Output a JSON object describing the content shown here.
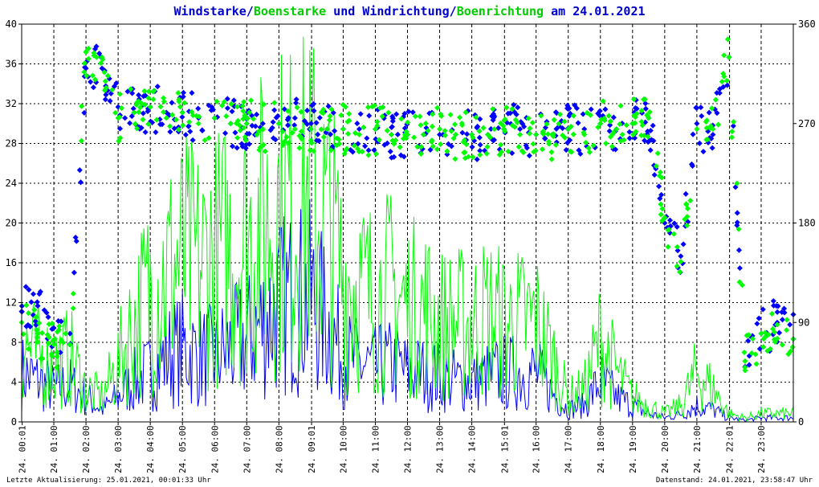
{
  "title": {
    "part1": "Windstarke/",
    "part2": "Boenstarke",
    "part3": " und ",
    "part4": "Windrichtung/",
    "part5": "Boenrichtung",
    "part6": " am 24.01.2021"
  },
  "footer": {
    "left": "Letzte Aktualisierung: 25.01.2021, 00:01:33 Uhr",
    "right": "Datenstand: 24.01.2021, 23:58:47 Uhr"
  },
  "colors": {
    "wind": "#0000ff",
    "gust": "#00ff00",
    "grid": "#000000"
  },
  "chart_data": {
    "type": "line",
    "x_unit": "time of day (hours)",
    "xlim": [
      0,
      24
    ],
    "ylim_left": [
      0,
      40
    ],
    "ylim_right": [
      0,
      360
    ],
    "yticks_left": [
      "0",
      "4",
      "8",
      "12",
      "16",
      "20",
      "24",
      "28",
      "32",
      "36",
      "40"
    ],
    "yticks_right": [
      "0",
      "90",
      "180",
      "270",
      "360"
    ],
    "xtick_labels": [
      "24. 00:01",
      "24. 01:00",
      "24. 02:00",
      "24. 03:00",
      "24. 04:00",
      "24. 05:00",
      "24. 06:00",
      "24. 07:00",
      "24. 08:00",
      "24. 09:01",
      "24. 10:00",
      "24. 11:00",
      "24. 12:00",
      "24. 13:00",
      "24. 14:00",
      "24. 15:01",
      "24. 16:00",
      "24. 17:00",
      "24. 18:00",
      "24. 19:00",
      "24. 20:00",
      "24. 21:00",
      "24. 22:01",
      "24. 23:00"
    ],
    "xtick_hours": [
      0.017,
      1,
      2,
      3,
      4,
      5,
      6,
      7,
      8,
      9.017,
      10,
      11,
      12,
      13,
      14,
      15.017,
      16,
      17,
      18,
      19,
      20,
      21,
      22.017,
      23
    ],
    "grid": true,
    "series": [
      {
        "name": "Windstarke",
        "axis": "left",
        "style": "line",
        "x": [
          0,
          0.5,
          1,
          1.5,
          2,
          2.5,
          3,
          3.5,
          4,
          4.5,
          5,
          5.5,
          6,
          6.5,
          7,
          7.5,
          8,
          8.5,
          9,
          9.5,
          10,
          10.5,
          11,
          11.5,
          12,
          12.5,
          13,
          13.5,
          14,
          14.5,
          15,
          15.5,
          16,
          16.5,
          17,
          17.5,
          18,
          18.5,
          19,
          19.5,
          20,
          20.5,
          21,
          21.5,
          22,
          22.5,
          23,
          23.5,
          24
        ],
        "values": [
          6,
          5,
          4,
          4.5,
          3,
          1.5,
          3,
          5,
          6,
          8,
          9,
          8,
          8,
          9,
          10,
          12,
          14,
          15,
          15,
          12,
          8,
          7,
          6.5,
          7,
          6,
          6,
          5.5,
          5,
          5,
          5.5,
          6,
          6,
          6,
          3.5,
          1.5,
          2,
          5,
          3,
          2,
          1,
          0.5,
          1,
          2,
          1.5,
          0.5,
          0.2,
          0.5,
          0.5,
          0.5
        ]
      },
      {
        "name": "Boenstarke",
        "axis": "left",
        "style": "line",
        "x": [
          0,
          0.5,
          1,
          1.5,
          2,
          2.5,
          3,
          3.5,
          4,
          4.5,
          5,
          5.5,
          6,
          6.5,
          7,
          7.5,
          8,
          8.5,
          9,
          9.5,
          10,
          10.5,
          11,
          11.5,
          12,
          12.5,
          13,
          13.5,
          14,
          14.5,
          15,
          15.5,
          16,
          16.5,
          17,
          17.5,
          18,
          18.5,
          19,
          19.5,
          20,
          20.5,
          21,
          21.5,
          22,
          22.5,
          23,
          23.5,
          24
        ],
        "values": [
          10,
          8,
          7,
          8,
          4,
          3,
          7,
          12,
          16,
          18,
          20,
          19,
          20,
          21,
          22,
          24,
          26,
          26,
          27,
          24,
          18,
          16,
          15,
          16,
          14,
          14,
          12,
          12,
          12,
          13,
          12,
          12,
          12,
          8,
          3,
          4,
          10,
          6,
          3,
          2,
          1,
          2,
          6,
          4,
          1,
          0.5,
          1,
          1,
          1
        ]
      },
      {
        "name": "Windrichtung",
        "axis": "right",
        "style": "points",
        "x": [
          0,
          0.5,
          1,
          1.5,
          2,
          2.5,
          3,
          3.5,
          4,
          4.5,
          5,
          5.5,
          6,
          6.5,
          7,
          7.5,
          8,
          8.5,
          9,
          9.5,
          10,
          10.5,
          11,
          11.5,
          12,
          12.5,
          13,
          13.5,
          14,
          14.5,
          15,
          15.5,
          16,
          16.5,
          17,
          17.5,
          18,
          18.5,
          19,
          19.5,
          20,
          20.5,
          21,
          21.5,
          22,
          22.5,
          23,
          23.5,
          24
        ],
        "values": [
          100,
          105,
          85,
          70,
          320,
          320,
          285,
          280,
          285,
          280,
          280,
          275,
          275,
          270,
          270,
          270,
          270,
          275,
          270,
          265,
          265,
          265,
          265,
          260,
          260,
          260,
          260,
          260,
          260,
          260,
          265,
          265,
          260,
          260,
          265,
          265,
          270,
          265,
          270,
          275,
          180,
          150,
          270,
          260,
          330,
          50,
          80,
          90,
          75
        ]
      },
      {
        "name": "Boenrichtung",
        "axis": "right",
        "style": "points",
        "x": [
          0,
          0.5,
          1,
          1.5,
          2,
          2.5,
          3,
          3.5,
          4,
          4.5,
          5,
          5.5,
          6,
          6.5,
          7,
          7.5,
          8,
          8.5,
          9,
          9.5,
          10,
          10.5,
          11,
          11.5,
          12,
          12.5,
          13,
          13.5,
          14,
          14.5,
          15,
          15.5,
          16,
          16.5,
          17,
          17.5,
          18,
          18.5,
          19,
          19.5,
          20,
          20.5,
          21,
          21.5,
          22,
          22.5,
          23,
          23.5,
          24
        ],
        "values": [
          90,
          80,
          70,
          70,
          335,
          330,
          275,
          280,
          285,
          275,
          280,
          270,
          275,
          270,
          270,
          265,
          270,
          265,
          265,
          265,
          265,
          260,
          265,
          260,
          260,
          260,
          265,
          260,
          260,
          260,
          265,
          260,
          260,
          260,
          265,
          260,
          270,
          265,
          270,
          275,
          185,
          145,
          265,
          265,
          330,
          55,
          80,
          88,
          75
        ]
      }
    ]
  }
}
